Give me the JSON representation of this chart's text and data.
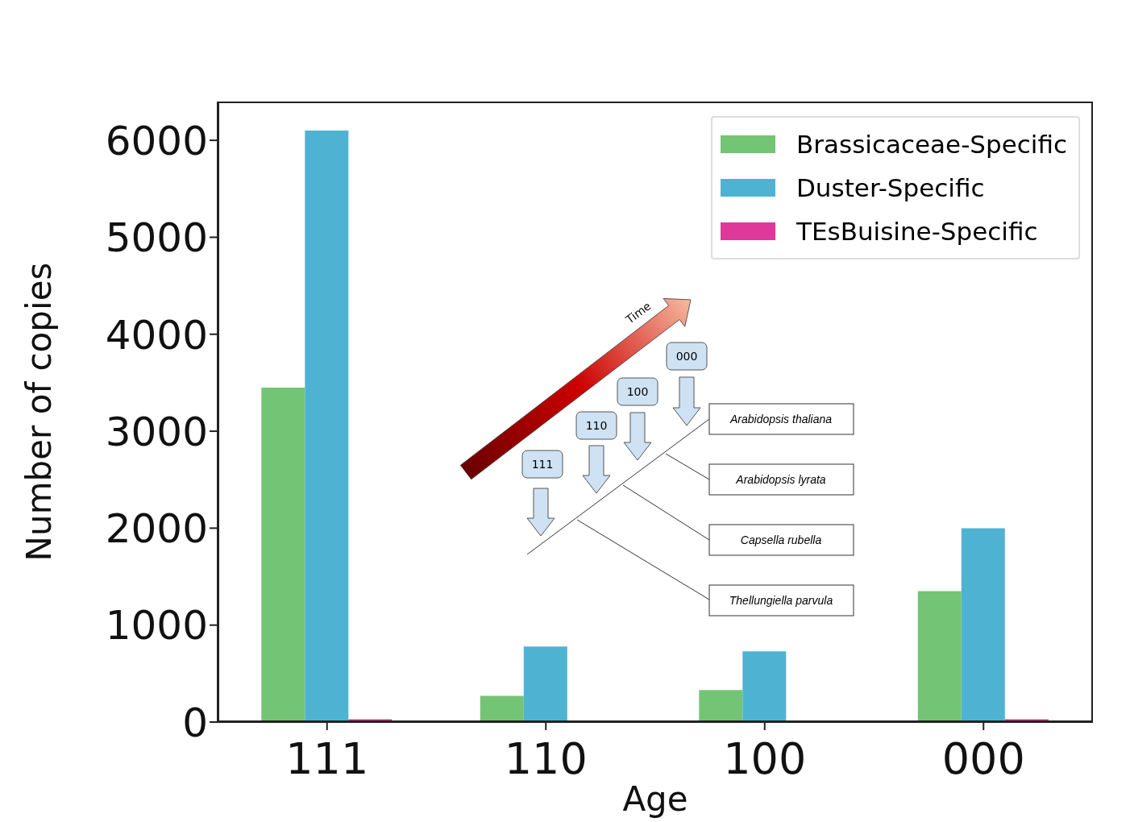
{
  "chart_data": {
    "type": "bar",
    "xlabel": "Age",
    "ylabel": "Number of copies",
    "categories": [
      "111",
      "110",
      "100",
      "000"
    ],
    "series": [
      {
        "name": "Brassicaceae-Specific",
        "color": "#74c476",
        "values": [
          3450,
          270,
          330,
          1350
        ]
      },
      {
        "name": "Duster-Specific",
        "color": "#4eb3d3",
        "values": [
          6100,
          780,
          730,
          2000
        ]
      },
      {
        "name": "TEsBuisine-Specific",
        "color": "#e0379a",
        "values": [
          30,
          0,
          0,
          30
        ]
      }
    ],
    "ylim": [
      0,
      6400
    ],
    "yticks": [
      0,
      1000,
      2000,
      3000,
      4000,
      5000,
      6000
    ],
    "legend": "top right",
    "grid": false,
    "annotations": [
      "Time",
      "000",
      "100",
      "110",
      "111",
      "Arabidopsis thaliana",
      "Arabidopsis lyrata",
      "Capsella rubella",
      "Thellungiella parvula"
    ]
  }
}
